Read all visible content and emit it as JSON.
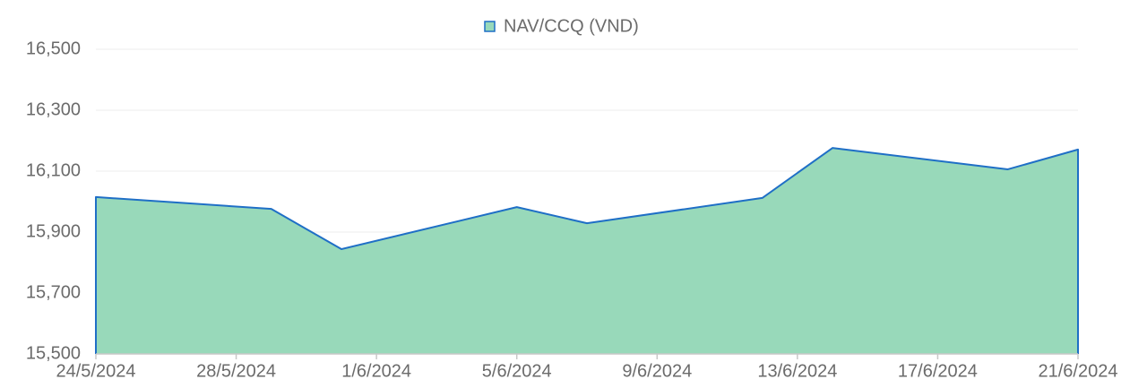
{
  "chart_data": {
    "type": "area",
    "x": [
      "2024-05-24",
      "2024-05-29",
      "2024-05-31",
      "2024-06-05",
      "2024-06-07",
      "2024-06-12",
      "2024-06-14",
      "2024-06-19",
      "2024-06-21"
    ],
    "series": [
      {
        "name": "NAV/CCQ (VND)",
        "color": "#1f6fc6",
        "fill": "#98d9ba",
        "values": [
          16015,
          15976,
          15844,
          15982,
          15929,
          16012,
          16176,
          16106,
          16171
        ]
      }
    ],
    "xlim": [
      "2024-05-24",
      "2024-06-21"
    ],
    "xticks": [
      {
        "value": "2024-05-24",
        "label": "24/5/2024"
      },
      {
        "value": "2024-05-28",
        "label": "28/5/2024"
      },
      {
        "value": "2024-06-01",
        "label": "1/6/2024"
      },
      {
        "value": "2024-06-05",
        "label": "5/6/2024"
      },
      {
        "value": "2024-06-09",
        "label": "9/6/2024"
      },
      {
        "value": "2024-06-13",
        "label": "13/6/2024"
      },
      {
        "value": "2024-06-17",
        "label": "17/6/2024"
      },
      {
        "value": "2024-06-21",
        "label": "21/6/2024"
      }
    ],
    "ylim": [
      15500,
      16500
    ],
    "yticks": [
      {
        "value": 15500,
        "label": "15,500"
      },
      {
        "value": 15700,
        "label": "15,700"
      },
      {
        "value": 15900,
        "label": "15,900"
      },
      {
        "value": 16100,
        "label": "16,100"
      },
      {
        "value": 16300,
        "label": "16,300"
      },
      {
        "value": 16500,
        "label": "16,500"
      }
    ],
    "grid": true,
    "legend": "top"
  }
}
